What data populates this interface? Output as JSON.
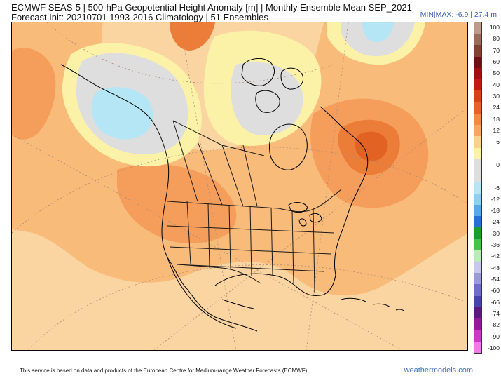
{
  "header": {
    "line1": "ECMWF SEAS-5 | 500-hPa Geopotential Height Anomaly [m] | Monthly Ensemble Mean SEP_2021",
    "line2": "Forecast Init: 20210701     1993-2016 Climatology | 51 Ensembles",
    "minmax": "MIN|MAX: -6.9 | 27.4 m"
  },
  "colorbar": {
    "levels": [
      {
        "label": "100",
        "color": "#bf9c8a"
      },
      {
        "label": "80",
        "color": "#9c6a56"
      },
      {
        "label": "70",
        "color": "#85402f"
      },
      {
        "label": "60",
        "color": "#6b1212"
      },
      {
        "label": "50",
        "color": "#a01010"
      },
      {
        "label": "40",
        "color": "#c41a12"
      },
      {
        "label": "30",
        "color": "#d9401c"
      },
      {
        "label": "24",
        "color": "#e8612a"
      },
      {
        "label": "18",
        "color": "#f08a44"
      },
      {
        "label": "12",
        "color": "#f5a865"
      },
      {
        "label": "6",
        "color": "#fbd092"
      },
      {
        "label": "",
        "color": "#fbf2a8"
      },
      {
        "label": "0",
        "color": "#dedede"
      },
      {
        "label": "",
        "color": "#dedede"
      },
      {
        "label": "-6",
        "color": "#b6e6f6"
      },
      {
        "label": "-12",
        "color": "#8fd0f2"
      },
      {
        "label": "-18",
        "color": "#5aa8e8"
      },
      {
        "label": "-24",
        "color": "#2a6fd2"
      },
      {
        "label": "-30",
        "color": "#1c9e2c"
      },
      {
        "label": "-36",
        "color": "#46c24c"
      },
      {
        "label": "-42",
        "color": "#b6ecb6"
      },
      {
        "label": "-48",
        "color": "#c8c8ee"
      },
      {
        "label": "-54",
        "color": "#9a9ada"
      },
      {
        "label": "-60",
        "color": "#6e6ec4"
      },
      {
        "label": "-66",
        "color": "#4646a8"
      },
      {
        "label": "-74",
        "color": "#5e1a78"
      },
      {
        "label": "-82",
        "color": "#941a96"
      },
      {
        "label": "-90",
        "color": "#c83cc2"
      },
      {
        "label": "-100",
        "color": "#f07ae8"
      }
    ]
  },
  "footer": {
    "disclaimer": "This service is based on data and products of the European Centre for Medium-range Weather Forecasts (ECMWF)",
    "brand": "weathermodels.com"
  },
  "map": {
    "projection": "polar-stereographic North America",
    "field": "500-hPa geopotential height anomaly",
    "colors": {
      "background": "#fad5a1",
      "orange_light": "#f8bb7a",
      "orange_mid": "#f59d5a",
      "orange_strong": "#ec7d39",
      "orange_peak": "#e26224",
      "yellow": "#fbf2a8",
      "gray": "#dedede",
      "cyan": "#b4e6f6",
      "coast": "#000000",
      "border": "#1a1a1a",
      "graticule": "#b08a74"
    }
  }
}
